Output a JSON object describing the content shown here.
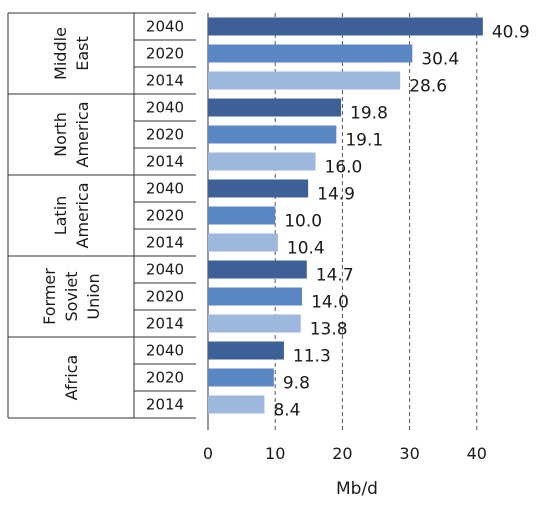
{
  "chart_data": {
    "type": "bar",
    "orientation": "horizontal",
    "title": "",
    "xlabel": "Mb/d",
    "ylabel": "",
    "xlim": [
      0,
      40
    ],
    "xticks": [
      "0",
      "10",
      "20",
      "30",
      "40"
    ],
    "grid": "vertical dashed",
    "groups": [
      {
        "name_lines": [
          "Middle",
          "East"
        ],
        "bars": [
          {
            "year": "2040",
            "value": 40.9,
            "label": "40.9"
          },
          {
            "year": "2020",
            "value": 30.4,
            "label": "30.4"
          },
          {
            "year": "2014",
            "value": 28.6,
            "label": "28.6"
          }
        ]
      },
      {
        "name_lines": [
          "North",
          "America"
        ],
        "bars": [
          {
            "year": "2040",
            "value": 19.8,
            "label": "19.8"
          },
          {
            "year": "2020",
            "value": 19.1,
            "label": "19.1"
          },
          {
            "year": "2014",
            "value": 16.0,
            "label": "16.0"
          }
        ]
      },
      {
        "name_lines": [
          "Latin",
          "America"
        ],
        "bars": [
          {
            "year": "2040",
            "value": 14.9,
            "label": "14.9"
          },
          {
            "year": "2020",
            "value": 10.0,
            "label": "10.0"
          },
          {
            "year": "2014",
            "value": 10.4,
            "label": "10.4"
          }
        ]
      },
      {
        "name_lines": [
          "Former",
          "Soviet",
          "Union"
        ],
        "bars": [
          {
            "year": "2040",
            "value": 14.7,
            "label": "14.7"
          },
          {
            "year": "2020",
            "value": 14.0,
            "label": "14.0"
          },
          {
            "year": "2014",
            "value": 13.8,
            "label": "13.8"
          }
        ]
      },
      {
        "name_lines": [
          "Africa"
        ],
        "bars": [
          {
            "year": "2040",
            "value": 11.3,
            "label": "11.3"
          },
          {
            "year": "2020",
            "value": 9.8,
            "label": "9.8"
          },
          {
            "year": "2014",
            "value": 8.4,
            "label": "8.4"
          }
        ]
      }
    ],
    "colors": {
      "2040": "#3d6196",
      "2020": "#5a87c4",
      "2014": "#9db7dd"
    }
  }
}
